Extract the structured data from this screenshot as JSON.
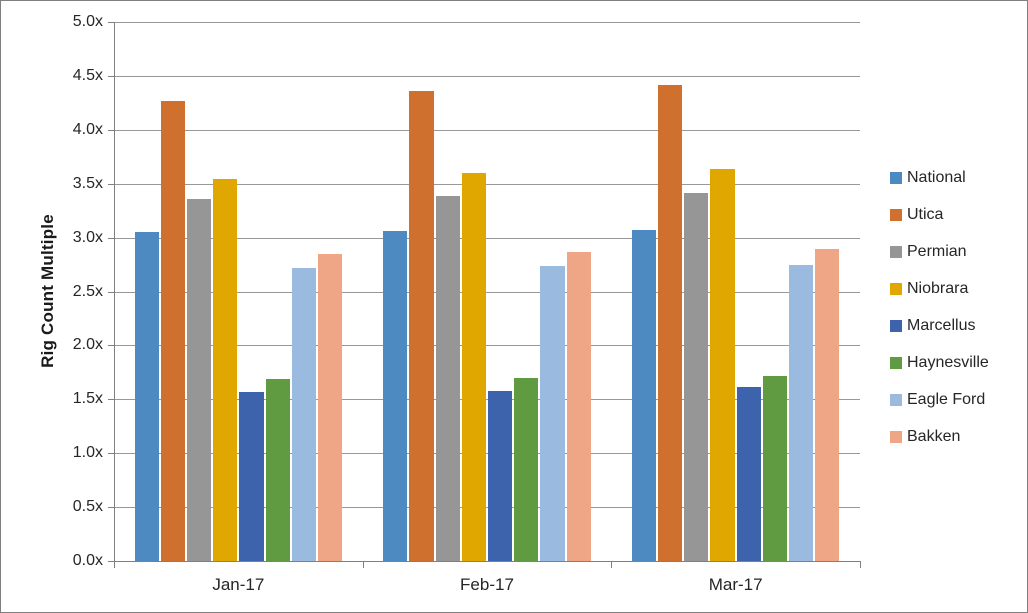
{
  "chart_data": {
    "type": "bar",
    "title": "",
    "xlabel": "",
    "ylabel": "Rig Count Multiple",
    "categories": [
      "Jan-17",
      "Feb-17",
      "Mar-17"
    ],
    "series": [
      {
        "name": "National",
        "color": "#4E8AC2",
        "values": [
          3.05,
          3.06,
          3.07
        ]
      },
      {
        "name": "Utica",
        "color": "#D0702E",
        "values": [
          4.27,
          4.36,
          4.42
        ]
      },
      {
        "name": "Permian",
        "color": "#969696",
        "values": [
          3.36,
          3.39,
          3.41
        ]
      },
      {
        "name": "Niobrara",
        "color": "#DFA700",
        "values": [
          3.54,
          3.6,
          3.64
        ]
      },
      {
        "name": "Marcellus",
        "color": "#3D63AC",
        "values": [
          1.57,
          1.58,
          1.61
        ]
      },
      {
        "name": "Haynesville",
        "color": "#609A41",
        "values": [
          1.69,
          1.7,
          1.72
        ]
      },
      {
        "name": "Eagle Ford",
        "color": "#9BBADF",
        "values": [
          2.72,
          2.74,
          2.75
        ]
      },
      {
        "name": "Bakken",
        "color": "#EFA687",
        "values": [
          2.85,
          2.87,
          2.89
        ]
      }
    ],
    "y_axis": {
      "min": 0.0,
      "max": 5.0,
      "step": 0.5,
      "tick_suffix": "x",
      "tick_labels": [
        "0.0x",
        "0.5x",
        "1.0x",
        "1.5x",
        "2.0x",
        "2.5x",
        "3.0x",
        "3.5x",
        "4.0x",
        "4.5x",
        "5.0x"
      ]
    },
    "legend_position": "right",
    "grid": "horizontal",
    "colors": {
      "gridline": "#999999",
      "axis": "#808080",
      "text": "#262626",
      "border": "#7F7F7F",
      "background": "#FFFFFF"
    }
  }
}
